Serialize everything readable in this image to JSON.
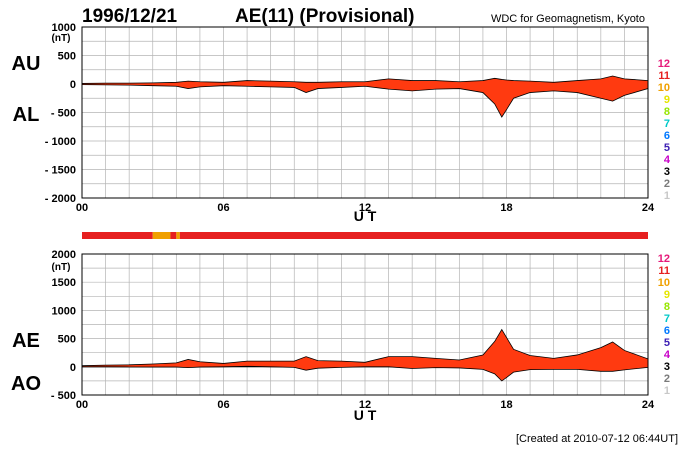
{
  "header": {
    "date": "1996/12/21",
    "title": "AE(11) (Provisional)",
    "source": "WDC for Geomagnetism, Kyoto"
  },
  "footer": {
    "created": "[Created at 2010-07-12 06:44UT]"
  },
  "legend_station_counts": {
    "labels": [
      "12",
      "11",
      "10",
      "9",
      "8",
      "7",
      "6",
      "5",
      "4",
      "3",
      "2",
      "1"
    ],
    "colors": [
      "#e6197a",
      "#e62020",
      "#f0a000",
      "#e6e600",
      "#96e600",
      "#00c8c8",
      "#0078ff",
      "#3c1eb4",
      "#c800c8",
      "#000000",
      "#7a7a7a",
      "#c8c8c8"
    ]
  },
  "chart_data": [
    {
      "type": "area",
      "panel": "top",
      "left_labels": [
        "AU",
        "AL"
      ],
      "unit_label": "(nT)",
      "xlabel": "U T",
      "x_ticks": [
        "00",
        "06",
        "12",
        "18",
        "24"
      ],
      "ylim": [
        -2000,
        1000
      ],
      "y_ticks": [
        "1000",
        "500",
        "0",
        "- 500",
        "- 1000",
        "- 1500",
        "- 2000"
      ],
      "y_tick_values": [
        1000,
        500,
        0,
        -500,
        -1000,
        -1500,
        -2000
      ],
      "grid": true,
      "series": [
        {
          "hours": [
            0,
            1,
            2,
            3,
            4,
            4.5,
            5,
            6,
            7,
            8,
            9,
            9.5,
            10,
            11,
            12,
            13,
            14,
            15,
            16,
            17,
            17.5,
            17.8,
            18,
            18.3,
            19,
            20,
            21,
            22,
            22.5,
            23,
            24
          ],
          "values": [
            10,
            15,
            15,
            20,
            30,
            50,
            40,
            30,
            60,
            50,
            40,
            30,
            30,
            40,
            40,
            90,
            60,
            60,
            40,
            60,
            100,
            80,
            70,
            60,
            50,
            30,
            60,
            90,
            140,
            90,
            60
          ]
        },
        {
          "hours": [
            0,
            1,
            2,
            3,
            4,
            4.5,
            5,
            6,
            7,
            8,
            9,
            9.5,
            10,
            11,
            12,
            13,
            14,
            15,
            16,
            17,
            17.5,
            17.8,
            18,
            18.3,
            19,
            20,
            21,
            22,
            22.5,
            23,
            24
          ],
          "values": [
            -10,
            -15,
            -20,
            -30,
            -40,
            -80,
            -50,
            -30,
            -40,
            -50,
            -60,
            -150,
            -80,
            -60,
            -40,
            -90,
            -120,
            -90,
            -80,
            -150,
            -350,
            -580,
            -450,
            -250,
            -150,
            -120,
            -150,
            -250,
            -300,
            -200,
            -80
          ]
        }
      ]
    },
    {
      "type": "area",
      "panel": "bottom",
      "left_labels": [
        "AE",
        "AO"
      ],
      "unit_label": "(nT)",
      "xlabel": "U T",
      "x_ticks": [
        "00",
        "06",
        "12",
        "18",
        "24"
      ],
      "ylim": [
        -500,
        2000
      ],
      "y_ticks": [
        "2000",
        "1500",
        "1000",
        "500",
        "0",
        "- 500"
      ],
      "y_tick_values": [
        2000,
        1500,
        1000,
        500,
        0,
        -500
      ],
      "grid": true,
      "series": [
        {
          "hours": [
            0,
            1,
            2,
            3,
            4,
            4.5,
            5,
            6,
            7,
            8,
            9,
            9.5,
            10,
            11,
            12,
            13,
            14,
            15,
            16,
            17,
            17.5,
            17.8,
            18,
            18.3,
            19,
            20,
            21,
            22,
            22.5,
            23,
            24
          ],
          "values": [
            20,
            30,
            35,
            50,
            70,
            130,
            90,
            60,
            100,
            100,
            100,
            180,
            110,
            100,
            80,
            180,
            180,
            150,
            120,
            210,
            450,
            660,
            520,
            310,
            200,
            150,
            210,
            340,
            440,
            290,
            140
          ]
        },
        {
          "hours": [
            0,
            1,
            2,
            3,
            4,
            4.5,
            5,
            6,
            7,
            8,
            9,
            9.5,
            10,
            11,
            12,
            13,
            14,
            15,
            16,
            17,
            17.5,
            17.8,
            18,
            18.3,
            19,
            20,
            21,
            22,
            22.5,
            23,
            24
          ],
          "values": [
            0,
            0,
            -3,
            -5,
            -5,
            -15,
            -5,
            0,
            10,
            0,
            -10,
            -60,
            -25,
            -10,
            0,
            0,
            -30,
            -15,
            -20,
            -45,
            -125,
            -250,
            -190,
            -95,
            -50,
            -45,
            -45,
            -80,
            -80,
            -55,
            -10
          ]
        }
      ]
    }
  ],
  "station_count_bar": {
    "segments": [
      {
        "from_hour": 0,
        "to_hour": 3.0,
        "count": "11"
      },
      {
        "from_hour": 3.0,
        "to_hour": 3.75,
        "count": "10"
      },
      {
        "from_hour": 3.75,
        "to_hour": 4.0,
        "count": "11"
      },
      {
        "from_hour": 4.0,
        "to_hour": 4.15,
        "count": "10"
      },
      {
        "from_hour": 4.15,
        "to_hour": 24,
        "count": "11"
      }
    ],
    "fill_colors": {
      "10": "#f0a000",
      "11": "#e62020"
    }
  },
  "colors": {
    "fill": "#ff3a10",
    "stroke": "#000000",
    "grid": "#b4b4b4"
  }
}
